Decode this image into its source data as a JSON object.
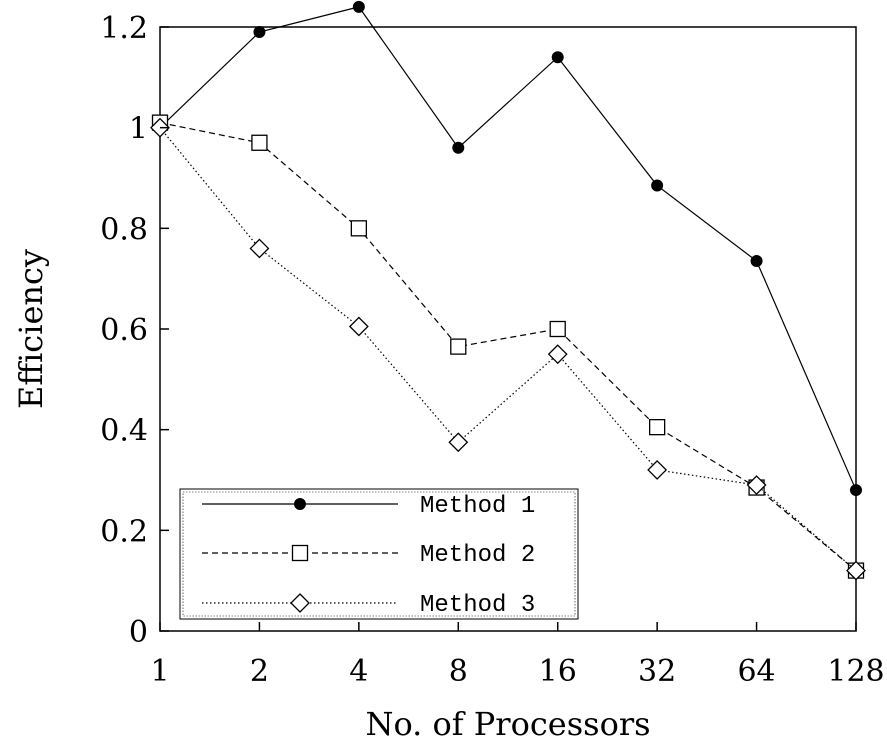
{
  "chart_data": {
    "type": "line",
    "title": "",
    "xlabel": "No. of Processors",
    "ylabel": "Efficiency",
    "categories": [
      "1",
      "2",
      "4",
      "8",
      "16",
      "32",
      "64",
      "128"
    ],
    "x": [
      1,
      2,
      4,
      8,
      16,
      32,
      64,
      128
    ],
    "xscale": "log2",
    "ylim": [
      0,
      1.2
    ],
    "yticks": [
      0,
      0.2,
      0.4,
      0.6,
      0.8,
      1,
      1.2
    ],
    "ytick_labels": [
      "0",
      "0.2",
      "0.4",
      "0.6",
      "0.8",
      "1",
      "1.2"
    ],
    "grid": false,
    "legend_position": "bottom-left",
    "series": [
      {
        "name": "Method 1",
        "values": [
          1.0,
          1.19,
          1.24,
          0.96,
          1.14,
          0.885,
          0.735,
          0.28
        ],
        "marker": "filled-circle",
        "line_style": "solid",
        "color": "#000000"
      },
      {
        "name": "Method 2",
        "values": [
          1.01,
          0.97,
          0.8,
          0.565,
          0.6,
          0.405,
          0.285,
          0.12
        ],
        "marker": "open-square",
        "line_style": "dashed",
        "color": "#000000"
      },
      {
        "name": "Method 3",
        "values": [
          1.0,
          0.76,
          0.605,
          0.375,
          0.55,
          0.32,
          0.29,
          0.12
        ],
        "marker": "open-diamond",
        "line_style": "dotted",
        "color": "#000000"
      }
    ]
  }
}
